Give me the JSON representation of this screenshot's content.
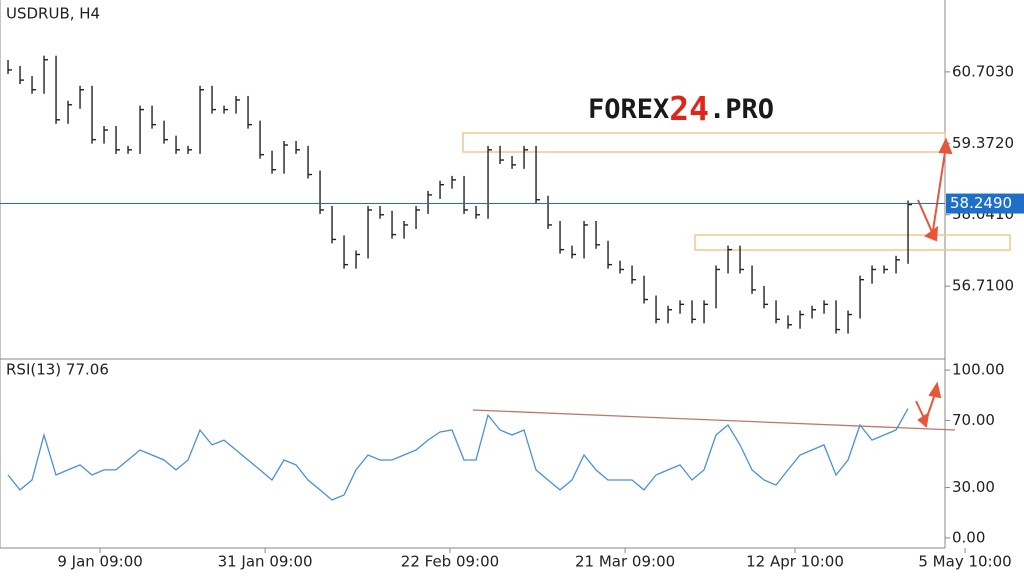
{
  "chart_data": [
    {
      "type": "price",
      "title": "USDRUB, H4",
      "watermark": [
        "FOREX",
        "24",
        ".PRO"
      ],
      "color": "#222222",
      "values": [
        60.74,
        60.55,
        60.37,
        60.93,
        59.81,
        60.09,
        60.37,
        59.44,
        59.62,
        59.25,
        59.25,
        60.0,
        59.72,
        59.44,
        59.25,
        59.25,
        60.37,
        60.0,
        60.0,
        60.18,
        59.72,
        59.16,
        58.88,
        59.34,
        59.25,
        58.79,
        58.13,
        57.58,
        57.11,
        57.3,
        58.13,
        58.04,
        57.67,
        57.85,
        58.13,
        58.41,
        58.6,
        58.69,
        58.13,
        58.04,
        59.25,
        59.06,
        58.97,
        59.25,
        58.32,
        57.85,
        57.39,
        57.3,
        57.85,
        57.48,
        57.11,
        57.02,
        56.83,
        56.46,
        56.09,
        56.27,
        56.37,
        56.09,
        56.37,
        57.02,
        57.39,
        57.02,
        56.64,
        56.37,
        56.09,
        55.99,
        56.18,
        56.27,
        56.37,
        55.9,
        56.18,
        56.83,
        57.02,
        57.02,
        57.2,
        58.23
      ],
      "xlim": [
        -0.67,
        78.08
      ],
      "ylim": [
        55.37,
        62.043
      ],
      "yticks": [
        {
          "value": 56.71,
          "label": "56.7100"
        },
        {
          "value": 58.041,
          "label": "58.0410"
        },
        {
          "value": 59.372,
          "label": "59.3720"
        },
        {
          "value": 60.703,
          "label": "60.7030"
        }
      ],
      "current": {
        "value": 58.249,
        "label": "58.2490"
      },
      "current_color": "#1e6fc8"
    },
    {
      "type": "line",
      "title": "RSI(13) 77.06",
      "color": "#4a90d9",
      "values": [
        37.5,
        28.6,
        34.5,
        61.3,
        37.5,
        40.5,
        43.5,
        37.5,
        40.5,
        40.5,
        46.4,
        52.4,
        49.4,
        46.4,
        40.5,
        46.4,
        64.3,
        55.4,
        58.3,
        52.4,
        46.4,
        40.5,
        34.5,
        46.4,
        43.5,
        34.5,
        28.6,
        22.6,
        25.6,
        40.5,
        49.4,
        46.4,
        46.4,
        49.4,
        52.4,
        58.3,
        63.1,
        64.3,
        46.4,
        46.4,
        73.2,
        64.3,
        61.3,
        64.3,
        40.5,
        34.5,
        28.6,
        34.5,
        49.4,
        40.5,
        34.5,
        34.5,
        34.5,
        28.6,
        37.5,
        40.5,
        43.5,
        34.5,
        40.5,
        61.3,
        67.3,
        55.4,
        40.5,
        34.5,
        31.5,
        40.5,
        49.4,
        52.4,
        55.4,
        37.5,
        46.4,
        67.3,
        58.3,
        61.3,
        64.3,
        77.06
      ],
      "xlim": [
        -0.67,
        78.08
      ],
      "ylim": [
        -6,
        106
      ],
      "yticks": [
        {
          "value": 0,
          "label": "0.00"
        },
        {
          "value": 30,
          "label": "30.00"
        },
        {
          "value": 70,
          "label": "70.00"
        },
        {
          "value": 100,
          "label": "100.00"
        }
      ],
      "xticks": [
        {
          "value": 7.67,
          "label": "9 Jan 09:00"
        },
        {
          "value": 21.42,
          "label": "31 Jan 09:00"
        },
        {
          "value": 36.83,
          "label": "22 Feb 09:00"
        },
        {
          "value": 51.42,
          "label": "21 Mar 09:00"
        },
        {
          "value": 65.58,
          "label": "12 Apr 10:00"
        },
        {
          "value": 79.75,
          "label": "5 May 10:00"
        }
      ]
    }
  ]
}
